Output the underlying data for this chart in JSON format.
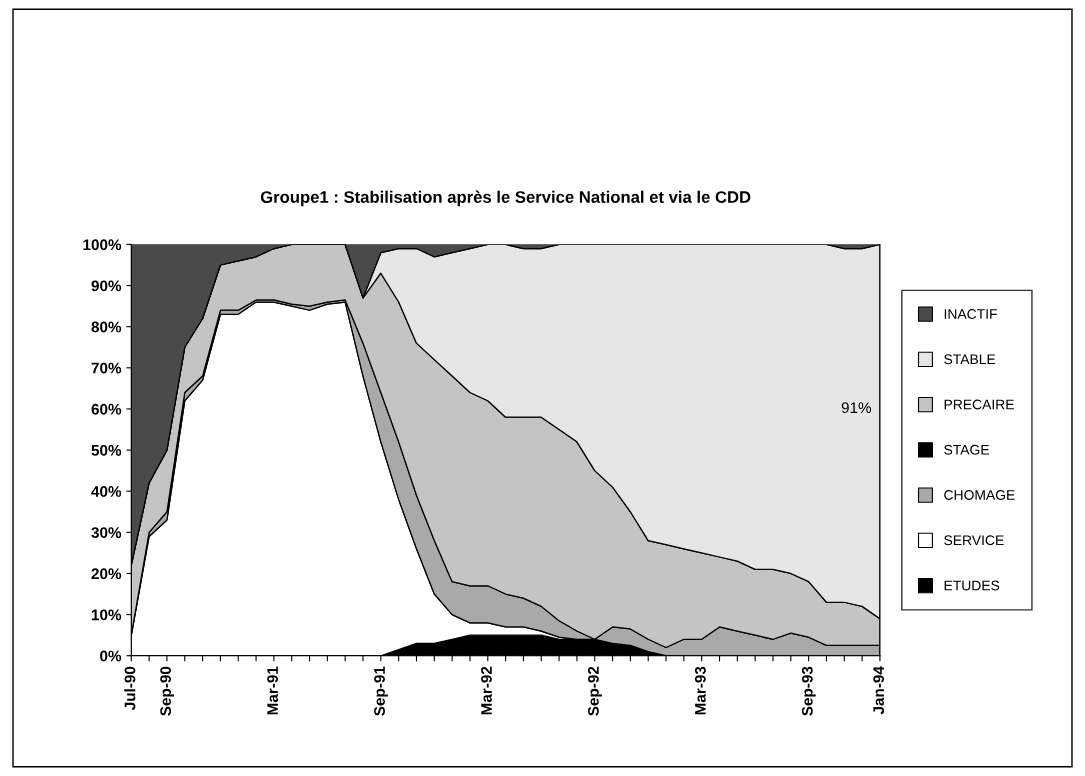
{
  "chart_data": {
    "type": "area",
    "stacked": true,
    "title": "Groupe1 : Stabilisation après le Service National et via le CDD",
    "categories": [
      "Jul-90",
      null,
      "Sep-90",
      null,
      null,
      null,
      null,
      null,
      "Mar-91",
      null,
      null,
      null,
      null,
      null,
      "Sep-91",
      null,
      null,
      null,
      null,
      null,
      "Mar-92",
      null,
      null,
      null,
      null,
      null,
      "Sep-92",
      null,
      null,
      null,
      null,
      null,
      "Mar-93",
      null,
      null,
      null,
      null,
      null,
      "Sep-93",
      null,
      null,
      null,
      "Jan-94"
    ],
    "series": [
      {
        "name": "ETUDES",
        "color": "#000000",
        "values": [
          0,
          0,
          0,
          0,
          0,
          0,
          0,
          0,
          0,
          0,
          0,
          0,
          0,
          0,
          0,
          1.5,
          3,
          3,
          4,
          5,
          5,
          5,
          5,
          5,
          4,
          4,
          4,
          3,
          2.5,
          1,
          0,
          0,
          0,
          0,
          0,
          0,
          0,
          0,
          0,
          0,
          0,
          0,
          0
        ]
      },
      {
        "name": "SERVICE",
        "color": "#ffffff",
        "values": [
          5,
          29,
          33,
          62,
          67,
          83,
          83,
          86,
          86,
          85,
          84,
          85.5,
          86,
          68,
          52,
          36.5,
          23,
          12,
          6,
          3,
          3,
          2,
          2,
          1,
          0.5,
          0,
          0,
          0,
          0,
          0,
          0,
          0,
          0,
          0,
          0,
          0,
          0,
          0,
          0,
          0,
          0,
          0,
          0
        ]
      },
      {
        "name": "CHOMAGE",
        "color": "#a9a9a9",
        "values": [
          0,
          1,
          2,
          2,
          1,
          1,
          1,
          0.5,
          0.5,
          0.5,
          1,
          0.5,
          0.5,
          8,
          12,
          14,
          13,
          13,
          8,
          9,
          9,
          8,
          7,
          6,
          4,
          2,
          0,
          4,
          4,
          3,
          2,
          4,
          4,
          7,
          6,
          5,
          4,
          5.5,
          4.5,
          2.5,
          2.5,
          2.5,
          2.5
        ]
      },
      {
        "name": "STAGE",
        "color": "#000000",
        "values": [
          null,
          null,
          null,
          null,
          null,
          null,
          null,
          null,
          null,
          null,
          null,
          null,
          null,
          null,
          null,
          null,
          null,
          null,
          null,
          null,
          null,
          null,
          null,
          null,
          null,
          null,
          null,
          null,
          null,
          null,
          null,
          null,
          null,
          null,
          null,
          null,
          null,
          null,
          null,
          null,
          null,
          null,
          null
        ]
      },
      {
        "name": "PRECAIRE",
        "color": "#c4c4c4",
        "values": [
          17,
          12,
          15,
          11,
          14,
          11,
          12,
          10.5,
          12.5,
          14.5,
          15,
          14,
          13.5,
          11,
          29,
          34,
          37,
          44,
          50,
          47,
          45,
          43,
          44,
          46,
          46.5,
          46,
          41,
          34,
          28.5,
          24,
          25,
          22,
          21,
          17,
          17,
          16,
          17,
          14.5,
          13.5,
          10.5,
          10.5,
          9.5,
          6.5
        ]
      },
      {
        "name": "STABLE",
        "color": "#e6e6e6",
        "values": [
          0,
          0,
          0,
          0,
          0,
          0,
          0,
          0,
          0,
          0,
          0,
          0,
          0,
          0,
          5,
          13,
          23,
          25,
          30,
          35,
          38,
          42,
          41,
          41,
          45,
          48,
          55,
          59,
          65,
          72,
          73,
          74,
          75,
          76,
          77,
          79,
          79,
          80,
          82,
          87,
          86,
          87,
          91
        ]
      },
      {
        "name": "INACTIF",
        "color": "#4a4a4a",
        "values": [
          78,
          58,
          50,
          25,
          18,
          5,
          4,
          3,
          1,
          0,
          0,
          0,
          0,
          13,
          2,
          1,
          1,
          3,
          2,
          1,
          0,
          0,
          1,
          1,
          0,
          0,
          0,
          0,
          0,
          0,
          0,
          0,
          0,
          0,
          0,
          0,
          0,
          0,
          0,
          0,
          1,
          1,
          0
        ]
      }
    ],
    "ylim": [
      0,
      100
    ],
    "yticks": [
      {
        "value": 0,
        "label": "0%"
      },
      {
        "value": 10,
        "label": "10%"
      },
      {
        "value": 20,
        "label": "20%"
      },
      {
        "value": 30,
        "label": "30%"
      },
      {
        "value": 40,
        "label": "40%"
      },
      {
        "value": 50,
        "label": "50%"
      },
      {
        "value": 60,
        "label": "60%"
      },
      {
        "value": 70,
        "label": "70%"
      },
      {
        "value": 80,
        "label": "80%"
      },
      {
        "value": 90,
        "label": "90%"
      },
      {
        "value": 100,
        "label": "100%"
      }
    ],
    "annotations": [
      {
        "text": "91%",
        "x": "Jan-94",
        "y": 60
      }
    ],
    "legend": "right",
    "grid": false
  }
}
